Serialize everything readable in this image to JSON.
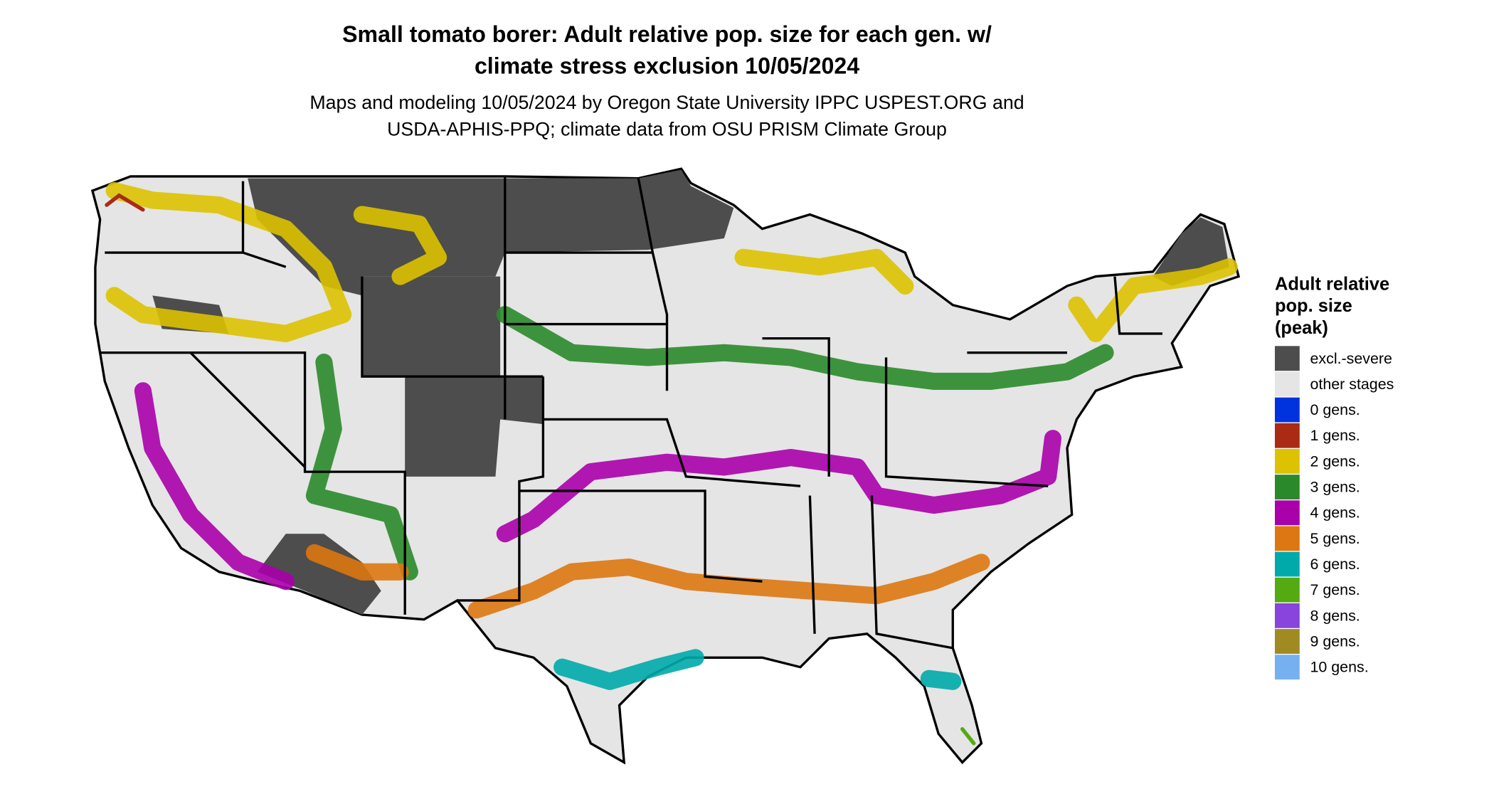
{
  "header": {
    "title_lines": [
      "Small tomato borer: Adult relative pop. size for each gen. w/",
      "climate stress exclusion 10/05/2024"
    ],
    "subtitle_lines": [
      "Maps and modeling 10/05/2024 by Oregon State University IPPC USPEST.ORG and",
      "USDA-APHIS-PPQ; climate data from OSU PRISM Climate Group"
    ]
  },
  "legend": {
    "title_lines": [
      "Adult relative",
      "pop. size",
      "(peak)"
    ],
    "items": [
      {
        "label": "excl.-severe",
        "color": "#4d4d4d"
      },
      {
        "label": "other stages",
        "color": "#e5e5e5"
      },
      {
        "label": "0 gens.",
        "color": "#0033dd"
      },
      {
        "label": "1 gens.",
        "color": "#aa2a14"
      },
      {
        "label": "2 gens.",
        "color": "#dcc200"
      },
      {
        "label": "3 gens.",
        "color": "#2a8a2a"
      },
      {
        "label": "4 gens.",
        "color": "#aa00aa"
      },
      {
        "label": "5 gens.",
        "color": "#dd7711"
      },
      {
        "label": "6 gens.",
        "color": "#00aaaa"
      },
      {
        "label": "7 gens.",
        "color": "#55aa11"
      },
      {
        "label": "8 gens.",
        "color": "#8844dd"
      },
      {
        "label": "9 gens.",
        "color": "#a08a22"
      },
      {
        "label": "10 gens.",
        "color": "#77b0f0"
      }
    ]
  }
}
